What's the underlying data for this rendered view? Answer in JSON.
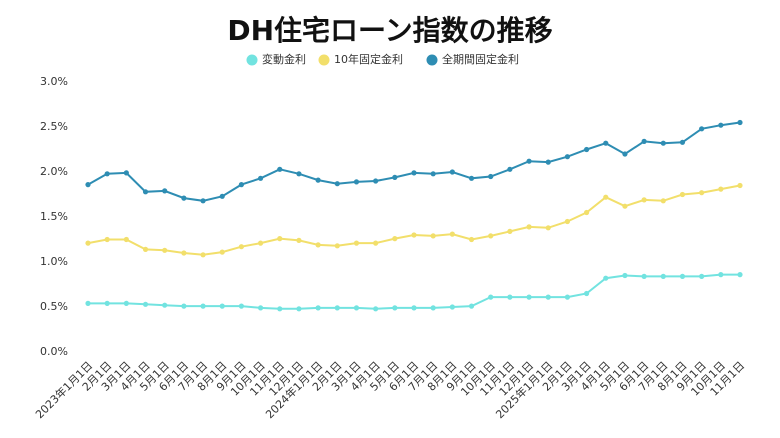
{
  "chart_data": {
    "type": "line",
    "title": "DH住宅ローン指数の推移",
    "categories": [
      "2023年1月1日",
      "2月1日",
      "3月1日",
      "4月1日",
      "5月1日",
      "6月1日",
      "7月1日",
      "8月1日",
      "9月1日",
      "10月1日",
      "11月1日",
      "12月1日",
      "2024年1月1日",
      "2月1日",
      "3月1日",
      "4月1日",
      "5月1日",
      "6月1日",
      "7月1日",
      "8月1日",
      "9月1日",
      "10月1日",
      "11月1日",
      "12月1日",
      "2025年1月1日",
      "2月1日",
      "3月1日",
      "4月1日",
      "5月1日",
      "6月1日",
      "7月1日",
      "8月1日",
      "9月1日",
      "10月1日",
      "11月1日"
    ],
    "series": [
      {
        "name": "変動金利",
        "color": "#72e3e0",
        "values": [
          0.54,
          0.54,
          0.54,
          0.53,
          0.52,
          0.51,
          0.51,
          0.51,
          0.51,
          0.49,
          0.48,
          0.48,
          0.49,
          0.49,
          0.49,
          0.48,
          0.49,
          0.49,
          0.49,
          0.5,
          0.51,
          0.61,
          0.61,
          0.61,
          0.61,
          0.61,
          0.65,
          0.82,
          0.85,
          0.84,
          0.84,
          0.84,
          0.84,
          0.86,
          0.86
        ]
      },
      {
        "name": "10年固定金利",
        "color": "#f2df6b",
        "values": [
          1.21,
          1.25,
          1.25,
          1.14,
          1.13,
          1.1,
          1.08,
          1.11,
          1.17,
          1.21,
          1.26,
          1.24,
          1.19,
          1.18,
          1.21,
          1.21,
          1.26,
          1.3,
          1.29,
          1.31,
          1.25,
          1.29,
          1.34,
          1.39,
          1.38,
          1.45,
          1.55,
          1.72,
          1.62,
          1.69,
          1.68,
          1.75,
          1.77,
          1.81,
          1.85
        ]
      },
      {
        "name": "全期間固定金利",
        "color": "#2e8db3",
        "values": [
          1.86,
          1.98,
          1.99,
          1.78,
          1.79,
          1.71,
          1.68,
          1.73,
          1.86,
          1.93,
          2.03,
          1.98,
          1.91,
          1.87,
          1.89,
          1.9,
          1.94,
          1.99,
          1.98,
          2.0,
          1.93,
          1.95,
          2.03,
          2.12,
          2.11,
          2.17,
          2.25,
          2.32,
          2.2,
          2.34,
          2.32,
          2.33,
          2.48,
          2.52,
          2.55
        ]
      }
    ],
    "ylim": [
      0,
      3
    ],
    "yticks": [
      {
        "value": 0,
        "label": "0.0%"
      },
      {
        "value": 0.5,
        "label": "0.5%"
      },
      {
        "value": 1,
        "label": "1.0%"
      },
      {
        "value": 1.5,
        "label": "1.5%"
      },
      {
        "value": 2,
        "label": "2.0%"
      },
      {
        "value": 2.5,
        "label": "2.5%"
      },
      {
        "value": 3,
        "label": "3.0%"
      }
    ],
    "grid": false,
    "legend": "top"
  }
}
